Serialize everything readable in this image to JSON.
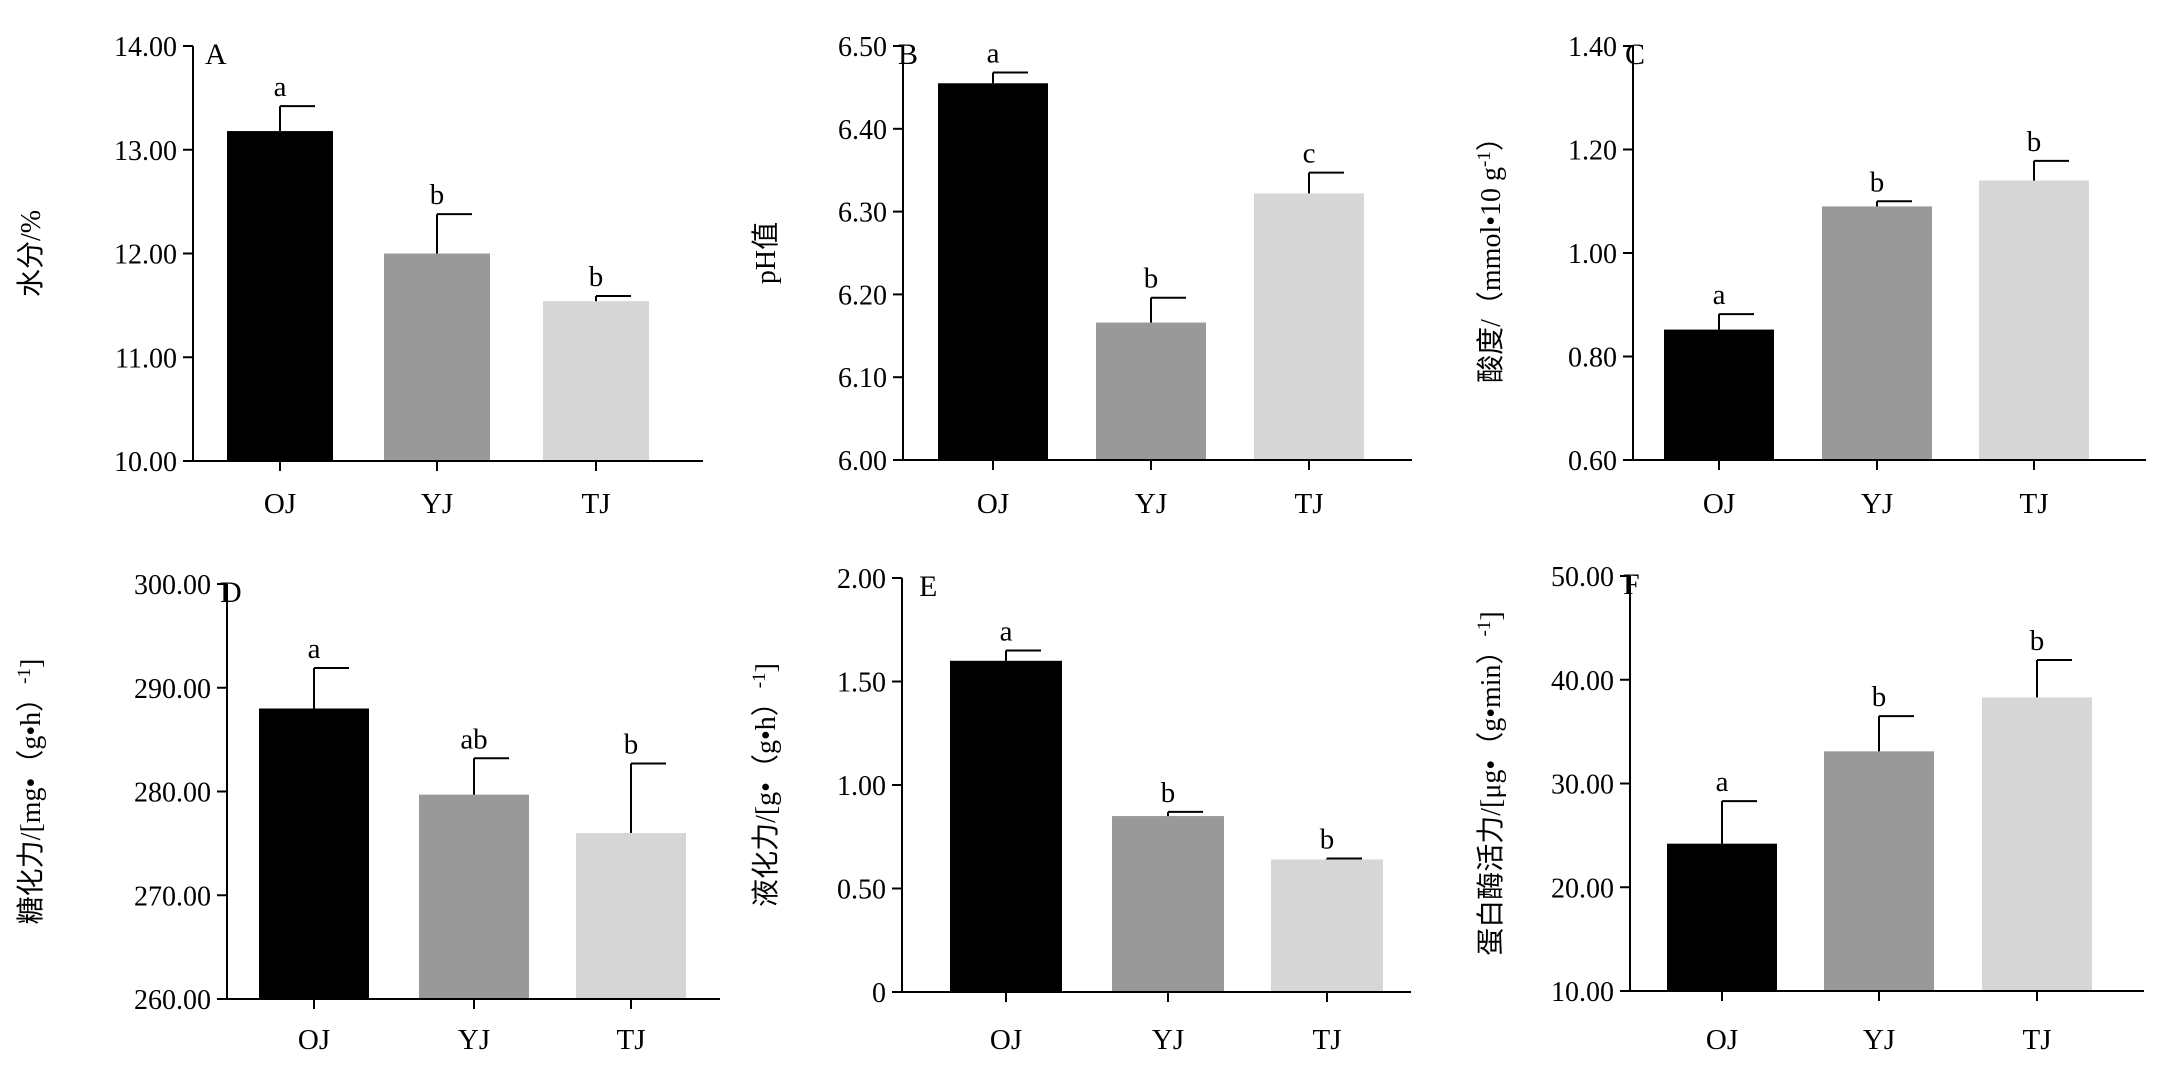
{
  "colors": {
    "OJ": "#000000",
    "YJ": "#999999",
    "TJ": "#d6d6d6"
  },
  "chart_data": [
    {
      "type": "bar",
      "panel": "A",
      "ylabel": "水分/%",
      "categories": [
        "OJ",
        "YJ",
        "TJ"
      ],
      "values": [
        13.18,
        12.0,
        11.54
      ],
      "errors": [
        0.24,
        0.38,
        0.05
      ],
      "sig": [
        "a",
        "b",
        "b"
      ],
      "ylim": [
        10.0,
        14.0
      ],
      "yticks": [
        10.0,
        11.0,
        12.0,
        13.0,
        14.0
      ],
      "ytick_labels": [
        "10.00",
        "11.00",
        "12.00",
        "13.00",
        "14.00"
      ]
    },
    {
      "type": "bar",
      "panel": "B",
      "ylabel": "pH值",
      "categories": [
        "OJ",
        "YJ",
        "TJ"
      ],
      "values": [
        6.455,
        6.166,
        6.322
      ],
      "errors": [
        0.013,
        0.03,
        0.025
      ],
      "sig": [
        "a",
        "b",
        "c"
      ],
      "ylim": [
        6.0,
        6.5
      ],
      "yticks": [
        6.0,
        6.1,
        6.2,
        6.3,
        6.4,
        6.5
      ],
      "ytick_labels": [
        "6.00",
        "6.10",
        "6.20",
        "6.30",
        "6.40",
        "6.50"
      ]
    },
    {
      "type": "bar",
      "panel": "C",
      "ylabel": "酸度/（mmol•10 g",
      "ylabel_sup": "-1",
      "ylabel_end": "）",
      "categories": [
        "OJ",
        "YJ",
        "TJ"
      ],
      "values": [
        0.852,
        1.09,
        1.14
      ],
      "errors": [
        0.03,
        0.01,
        0.038
      ],
      "sig": [
        "a",
        "b",
        "b"
      ],
      "ylim": [
        0.6,
        1.4
      ],
      "yticks": [
        0.6,
        0.8,
        1.0,
        1.2,
        1.4
      ],
      "ytick_labels": [
        "0.60",
        "0.80",
        "1.00",
        "1.20",
        "1.40"
      ]
    },
    {
      "type": "bar",
      "panel": "D",
      "ylabel": "糖化力/[mg•（g•h）",
      "ylabel_sup": "-1",
      "ylabel_end": "]",
      "categories": [
        "OJ",
        "YJ",
        "TJ"
      ],
      "values": [
        288.0,
        279.7,
        276.0
      ],
      "errors": [
        3.9,
        3.5,
        6.7
      ],
      "sig": [
        "a",
        "ab",
        "b"
      ],
      "ylim": [
        260.0,
        300.0
      ],
      "yticks": [
        260.0,
        270.0,
        280.0,
        290.0,
        300.0
      ],
      "ytick_labels": [
        "260.00",
        "270.00",
        "280.00",
        "290.00",
        "300.00"
      ]
    },
    {
      "type": "bar",
      "panel": "E",
      "ylabel": "液化力/[g•（g•h）",
      "ylabel_sup": "-1",
      "ylabel_end": "]",
      "categories": [
        "OJ",
        "YJ",
        "TJ"
      ],
      "values": [
        1.6,
        0.85,
        0.64
      ],
      "errors": [
        0.05,
        0.02,
        0.005
      ],
      "sig": [
        "a",
        "b",
        "b"
      ],
      "ylim": [
        0,
        2.0
      ],
      "yticks": [
        0,
        0.5,
        1.0,
        1.5,
        2.0
      ],
      "ytick_labels": [
        "0",
        "0.50",
        "1.00",
        "1.50",
        "2.00"
      ]
    },
    {
      "type": "bar",
      "panel": "F",
      "ylabel": "蛋白酶活力/[μg•（g•min）",
      "ylabel_sup": "-1",
      "ylabel_end": "]",
      "categories": [
        "OJ",
        "YJ",
        "TJ"
      ],
      "values": [
        24.2,
        33.1,
        38.3
      ],
      "errors": [
        4.1,
        3.4,
        3.6
      ],
      "sig": [
        "a",
        "b",
        "b"
      ],
      "ylim": [
        10.0,
        50.0
      ],
      "yticks": [
        10.0,
        20.0,
        30.0,
        40.0,
        50.0
      ],
      "ytick_labels": [
        "10.00",
        "20.00",
        "30.00",
        "40.00",
        "50.00"
      ]
    }
  ]
}
